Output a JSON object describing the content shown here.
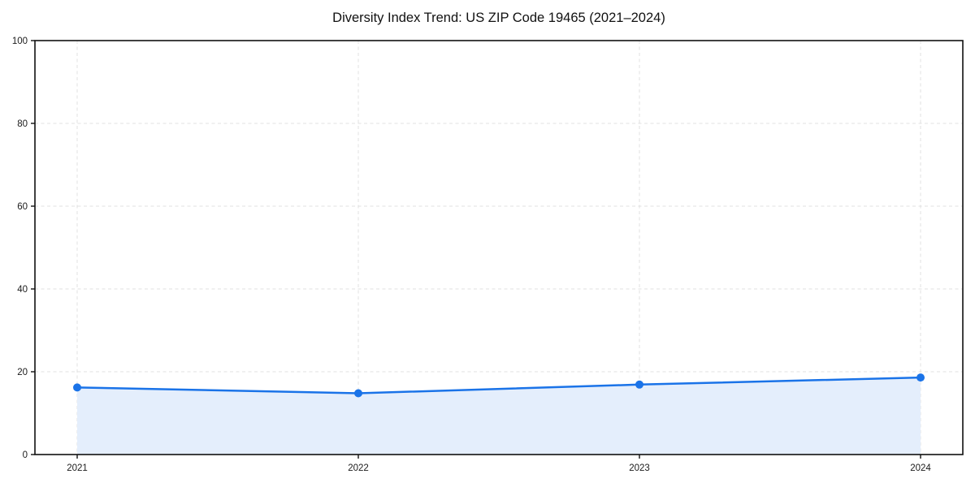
{
  "title": "Diversity Index Trend: US ZIP Code 19465 (2021–2024)",
  "chart_data": {
    "type": "line",
    "title": "Diversity Index Trend: US ZIP Code 19465 (2021–2024)",
    "x": [
      "2021",
      "2022",
      "2023",
      "2024"
    ],
    "series": [
      {
        "name": "Diversity Index",
        "values": [
          16.2,
          14.8,
          16.9,
          18.6
        ]
      }
    ],
    "xlabel": "",
    "ylabel": "",
    "ylim": [
      0,
      100
    ],
    "yticks": [
      0,
      20,
      40,
      60,
      80,
      100
    ],
    "markers": true,
    "area_fill": true,
    "grid": {
      "style": "dashed",
      "horizontal": true,
      "vertical": true
    },
    "legend": "none",
    "colors": {
      "line": "#1a73e8",
      "marker": "#1a73e8",
      "fill": "#e4eefc",
      "grid": "#e0e0e0",
      "axis": "#111111",
      "tick_text": "#1a1a1a",
      "background": "#ffffff"
    }
  }
}
